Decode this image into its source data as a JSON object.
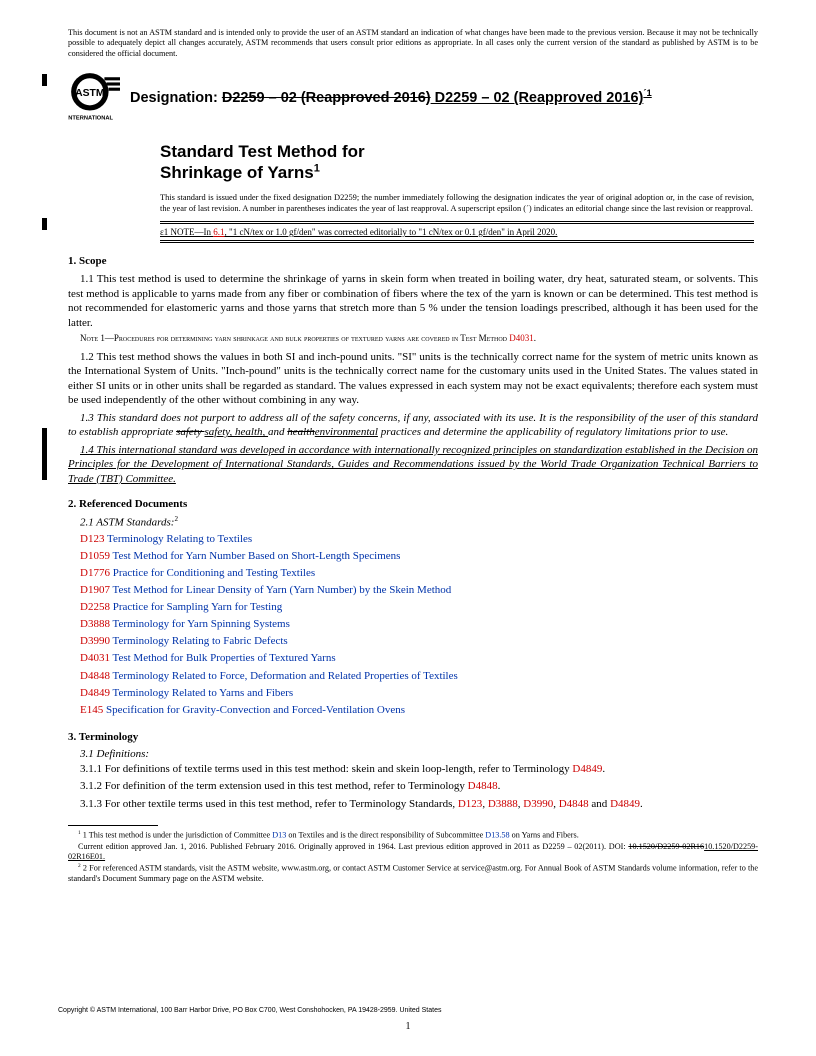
{
  "disclaimer": "This document is not an ASTM standard and is intended only to provide the user of an ASTM standard an indication of what changes have been made to the previous version. Because it may not be technically possible to adequately depict all changes accurately, ASTM recommends that users consult prior editions as appropriate. In all cases only the current version of the standard as published by ASTM is to be considered the official document.",
  "designation_label": "Designation: ",
  "designation_strike": "D2259 – 02 (Reapproved 2016)",
  "designation_underline": " D2259 – 02 (Reapproved 2016)",
  "designation_eps": "´1",
  "title_l1": "Standard Test Method for",
  "title_l2": "Shrinkage of Yarns",
  "title_sup": "1",
  "issuance": "This standard is issued under the fixed designation D2259; the number immediately following the designation indicates the year of original adoption or, in the case of revision, the year of last revision. A number in parentheses indicates the year of last reapproval. A superscript epsilon (´) indicates an editorial change since the last revision or reapproval.",
  "eps_note_pre": "ε1 NOTE—In ",
  "eps_note_ref": "6.1",
  "eps_note_post": ", \"1 cN/tex or 1.0 gf/den\" was corrected editorially to \"1 cN/tex or 0.1 gf/den\" in April 2020.",
  "s1_head": "1. Scope",
  "p11": "1.1 This test method is used to determine the shrinkage of yarns in skein form when treated in boiling water, dry heat, saturated steam, or solvents. This test method is applicable to yarns made from any fiber or combination of fibers where the tex of the yarn is known or can be determined. This test method is not recommended for elastomeric yarns and those yarns that stretch more than 5 % under the tension loadings prescribed, although it has been used for the latter.",
  "note1_pre": "Note 1—Procedures for determining yarn shrinkage and bulk properties of textured yarns are covered in Test Method ",
  "note1_ref": "D4031",
  "p12": "1.2 This test method shows the values in both SI and inch-pound units. \"SI\" units is the technically correct name for the system of metric units known as the International System of Units. \"Inch-pound\" units is the technically correct name for the customary units used in the United States. The values stated in either SI units or in other units shall be regarded as standard. The values expressed in each system may not be exact equivalents; therefore each system must be used independently of the other without combining in any way.",
  "p13_pre": "1.3 This standard does not purport to address all of the safety concerns, if any, associated with its use. It is the responsibility of the user of this standard to establish appropriate ",
  "p13_s1": "safety ",
  "p13_u1": "safety, health, ",
  "p13_mid": "and ",
  "p13_s2": "health",
  "p13_u2": "environmental",
  "p13_post": " practices and determine the applicability of regulatory limitations prior to use.",
  "p14": "1.4 This international standard was developed in accordance with internationally recognized principles on standardization established in the Decision on Principles for the Development of International Standards, Guides and Recommendations issued by the World Trade Organization Technical Barriers to Trade (TBT) Committee.",
  "s2_head": "2. Referenced Documents",
  "s2_sub": "2.1 ASTM Standards:",
  "s2_sup": "2",
  "refs": [
    {
      "code": "D123",
      "title": "Terminology Relating to Textiles"
    },
    {
      "code": "D1059",
      "title": "Test Method for Yarn Number Based on Short-Length Specimens"
    },
    {
      "code": "D1776",
      "title": "Practice for Conditioning and Testing Textiles"
    },
    {
      "code": "D1907",
      "title": "Test Method for Linear Density of Yarn (Yarn Number) by the Skein Method"
    },
    {
      "code": "D2258",
      "title": "Practice for Sampling Yarn for Testing"
    },
    {
      "code": "D3888",
      "title": "Terminology for Yarn Spinning Systems"
    },
    {
      "code": "D3990",
      "title": "Terminology Relating to Fabric Defects"
    },
    {
      "code": "D4031",
      "title": "Test Method for Bulk Properties of Textured Yarns"
    },
    {
      "code": "D4848",
      "title": "Terminology Related to Force, Deformation and Related Properties of Textiles"
    },
    {
      "code": "D4849",
      "title": "Terminology Related to Yarns and Fibers"
    },
    {
      "code": "E145",
      "title": "Specification for Gravity-Convection and Forced-Ventilation Ovens"
    }
  ],
  "s3_head": "3. Terminology",
  "s3_sub": "3.1 Definitions:",
  "p311_pre": "3.1.1 For definitions of textile terms used in this test method: skein and skein loop-length, refer to Terminology ",
  "p311_ref": "D4849",
  "p312_pre": "3.1.2 For definition of the term extension used in this test method, refer to Terminology ",
  "p312_ref": "D4848",
  "p313_pre": "3.1.3 For other textile terms used in this test method, refer to Terminology Standards, ",
  "p313_r1": "D123",
  "p313_r2": "D3888",
  "p313_r3": "D3990",
  "p313_r4": "D4848",
  "p313_r5": "D4849",
  "fn1_pre": "1 This test method is under the jurisdiction of Committee ",
  "fn1_r1": "D13",
  "fn1_mid": " on Textiles and is the direct responsibility of Subcommittee ",
  "fn1_r2": "D13.58",
  "fn1_post": " on Yarns and Fibers.",
  "fn1b_pre": "Current edition approved Jan. 1, 2016. Published February 2016. Originally approved in 1964. Last previous edition approved in 2011 as D2259 – 02(2011). DOI: ",
  "fn1b_s": "10.1520/D2259-02R16",
  "fn1b_u": "10.1520/D2259-02R16E01.",
  "fn2": "2 For referenced ASTM standards, visit the ASTM website, www.astm.org, or contact ASTM Customer Service at service@astm.org. For Annual Book of ASTM Standards volume information, refer to the standard's Document Summary page on the ASTM website.",
  "copyright": "Copyright © ASTM International, 100 Barr Harbor Drive, PO Box C700, West Conshohocken, PA 19428-2959. United States",
  "pagenum": "1",
  "logo_text": "INTERNATIONAL"
}
